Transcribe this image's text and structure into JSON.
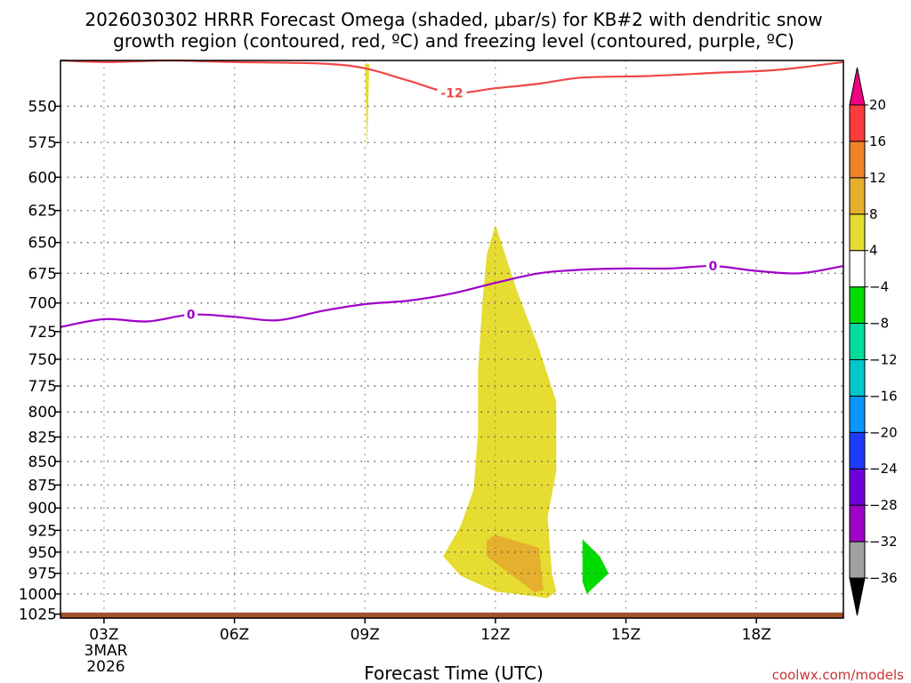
{
  "title_line1": "2026030302 HRRR Forecast Omega (shaded, μbar/s) for KB#2 with dendritic snow",
  "title_line2": "growth region (contoured, red, ºC) and freezing level (contoured, purple, ºC)",
  "credit": "coolwx.com/models",
  "chart_data": {
    "type": "area",
    "xlabel": "Forecast Time (UTC)",
    "ylabel": "",
    "x_range_hours": [
      2,
      20
    ],
    "y_range_hpa": [
      520,
      1030
    ],
    "y_scale": "pressure (inverted)",
    "grid": true,
    "x_ticks": [
      {
        "hour": 3,
        "label": "03Z"
      },
      {
        "hour": 6,
        "label": "06Z"
      },
      {
        "hour": 9,
        "label": "09Z"
      },
      {
        "hour": 12,
        "label": "12Z"
      },
      {
        "hour": 15,
        "label": "15Z"
      },
      {
        "hour": 18,
        "label": "18Z"
      }
    ],
    "x_date_label": [
      "3MAR",
      "2026"
    ],
    "y_ticks": [
      550,
      575,
      600,
      625,
      650,
      675,
      700,
      725,
      750,
      775,
      800,
      825,
      850,
      875,
      900,
      925,
      950,
      975,
      1000,
      1025
    ],
    "colorbar": {
      "levels": [
        -36,
        -32,
        -28,
        -24,
        -20,
        -16,
        -12,
        -8,
        -4,
        4,
        8,
        12,
        16,
        20
      ],
      "colors": [
        "#a0a0a0",
        "#a000c8",
        "#6e00dc",
        "#1e3cff",
        "#0a96ff",
        "#00c8c8",
        "#00dc9b",
        "#00dc00",
        "#ffffff",
        "#e6dc32",
        "#e6af2d",
        "#f08228",
        "#fa3c3c",
        "#f00082"
      ],
      "under_color": "#000000",
      "over_color": "#f00082"
    },
    "shaded_regions": [
      {
        "value": "4 to 8",
        "color": "#e6dc32",
        "points": [
          [
            9.0,
            522
          ],
          [
            9.1,
            522
          ],
          [
            9.05,
            580
          ]
        ]
      },
      {
        "value": "4 to 8",
        "color": "#e6dc32",
        "points": [
          [
            12.0,
            636
          ],
          [
            12.5,
            690
          ],
          [
            13.0,
            740
          ],
          [
            13.4,
            790
          ],
          [
            13.4,
            860
          ],
          [
            13.2,
            910
          ],
          [
            13.3,
            975
          ],
          [
            13.4,
            997
          ],
          [
            13.2,
            1005
          ],
          [
            12.0,
            997
          ],
          [
            11.2,
            978
          ],
          [
            10.8,
            955
          ],
          [
            11.2,
            920
          ],
          [
            11.5,
            880
          ],
          [
            11.6,
            820
          ],
          [
            11.6,
            760
          ],
          [
            11.7,
            700
          ],
          [
            11.8,
            660
          ]
        ]
      },
      {
        "value": "8 to 12",
        "color": "#e6af2d",
        "points": [
          [
            11.8,
            937
          ],
          [
            12.0,
            930
          ],
          [
            13.0,
            945
          ],
          [
            13.1,
            995
          ],
          [
            12.9,
            998
          ],
          [
            11.8,
            955
          ]
        ]
      },
      {
        "value": "-8 to -4",
        "color": "#00dc00",
        "points": [
          [
            14.0,
            935
          ],
          [
            14.4,
            955
          ],
          [
            14.6,
            975
          ],
          [
            14.1,
            1000
          ],
          [
            14.0,
            985
          ]
        ]
      }
    ],
    "contours": [
      {
        "name": "dendritic snow growth region",
        "label": "-12",
        "color": "#f04646",
        "unit": "ºC",
        "points": [
          [
            2.0,
            520
          ],
          [
            3.1,
            521
          ],
          [
            4.5,
            520
          ],
          [
            6.0,
            521
          ],
          [
            8.0,
            522
          ],
          [
            9.0,
            525
          ],
          [
            10.0,
            533
          ],
          [
            11.0,
            541
          ],
          [
            12.0,
            538
          ],
          [
            13.0,
            535
          ],
          [
            14.0,
            531
          ],
          [
            15.5,
            530
          ],
          [
            17.0,
            528
          ],
          [
            18.5,
            526
          ],
          [
            20.0,
            521
          ]
        ],
        "label_at": [
          11.0,
          541
        ]
      },
      {
        "name": "freezing level",
        "label": "0",
        "color": "#a000c8",
        "unit": "ºC",
        "points": [
          [
            2.0,
            721
          ],
          [
            3.0,
            714
          ],
          [
            4.0,
            716
          ],
          [
            5.0,
            710
          ],
          [
            6.0,
            712
          ],
          [
            7.0,
            715
          ],
          [
            8.0,
            707
          ],
          [
            9.0,
            701
          ],
          [
            10.0,
            698
          ],
          [
            11.0,
            692
          ],
          [
            12.0,
            683
          ],
          [
            13.0,
            675
          ],
          [
            14.0,
            672
          ],
          [
            15.0,
            671
          ],
          [
            16.0,
            671
          ],
          [
            17.0,
            669
          ],
          [
            18.0,
            673
          ],
          [
            19.0,
            675
          ],
          [
            20.0,
            669
          ]
        ],
        "label_at": [
          5.0,
          710
        ],
        "label2_at": [
          17.0,
          669
        ]
      }
    ],
    "surface_band": {
      "color": "#a0522d",
      "top_hpa": 1023,
      "bottom_hpa": 1030
    }
  }
}
